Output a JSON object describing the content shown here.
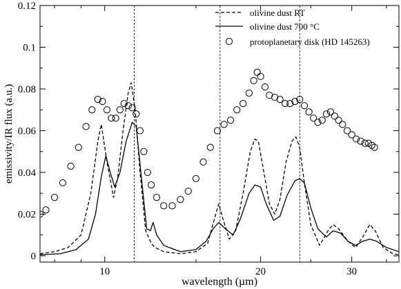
{
  "chart_data": {
    "type": "line",
    "title": "",
    "xlabel": "wavelength (µm)",
    "ylabel": "emissivity/IR flux (a.u.)",
    "x_scale": "log",
    "xlim": [
      7.5,
      37
    ],
    "ylim": [
      -0.003,
      0.12
    ],
    "x_ticks": [
      10,
      20,
      30
    ],
    "x_tick_labels": [
      "10",
      "20",
      "30"
    ],
    "y_ticks": [
      0,
      0.02,
      0.04,
      0.06,
      0.08,
      0.1,
      0.12
    ],
    "y_tick_labels": [
      "0",
      "0.02",
      "0.04",
      "0.06",
      "0.08",
      "0.1",
      "0.12"
    ],
    "vertical_lines_x": [
      11.4,
      16.7,
      23.8
    ],
    "legend_position": "top-right",
    "legend": [
      {
        "label": "olivine dust RT",
        "style": "dashed"
      },
      {
        "label": "olivine dust 700 °C",
        "style": "solid"
      },
      {
        "label": "protoplanetary disk (HD 145263)",
        "style": "open-circles"
      }
    ],
    "series": [
      {
        "name": "olivine dust RT",
        "style": "dashed",
        "color": "#000000",
        "points": [
          [
            7.5,
            0.001
          ],
          [
            8,
            0.002
          ],
          [
            8.5,
            0.004
          ],
          [
            9,
            0.01
          ],
          [
            9.4,
            0.03
          ],
          [
            9.7,
            0.055
          ],
          [
            9.85,
            0.063
          ],
          [
            10.1,
            0.045
          ],
          [
            10.4,
            0.028
          ],
          [
            10.6,
            0.038
          ],
          [
            10.85,
            0.06
          ],
          [
            11.1,
            0.078
          ],
          [
            11.25,
            0.083
          ],
          [
            11.45,
            0.07
          ],
          [
            11.7,
            0.04
          ],
          [
            12.0,
            0.012
          ],
          [
            12.3,
            0.006
          ],
          [
            12.5,
            0.004
          ],
          [
            13,
            0.002
          ],
          [
            14,
            0.001
          ],
          [
            15,
            0.002
          ],
          [
            15.8,
            0.006
          ],
          [
            16.3,
            0.018
          ],
          [
            16.6,
            0.025
          ],
          [
            16.9,
            0.018
          ],
          [
            17.4,
            0.008
          ],
          [
            17.9,
            0.012
          ],
          [
            18.5,
            0.03
          ],
          [
            19.1,
            0.05
          ],
          [
            19.5,
            0.056
          ],
          [
            19.8,
            0.055
          ],
          [
            20.3,
            0.04
          ],
          [
            20.8,
            0.025
          ],
          [
            21.3,
            0.02
          ],
          [
            21.8,
            0.027
          ],
          [
            22.4,
            0.045
          ],
          [
            23.0,
            0.055
          ],
          [
            23.4,
            0.057
          ],
          [
            23.8,
            0.052
          ],
          [
            24.3,
            0.035
          ],
          [
            25,
            0.015
          ],
          [
            26,
            0.005
          ],
          [
            27,
            0.012
          ],
          [
            27.6,
            0.015
          ],
          [
            28.3,
            0.013
          ],
          [
            29.5,
            0.007
          ],
          [
            30.5,
            0.004
          ],
          [
            31.5,
            0.009
          ],
          [
            32.5,
            0.015
          ],
          [
            33.3,
            0.012
          ],
          [
            34.5,
            0.004
          ],
          [
            36,
            0.001
          ],
          [
            37,
            0.0005
          ]
        ]
      },
      {
        "name": "olivine dust 700 °C",
        "style": "solid",
        "color": "#000000",
        "points": [
          [
            7.5,
            0.0005
          ],
          [
            8.2,
            0.001
          ],
          [
            8.8,
            0.003
          ],
          [
            9.3,
            0.008
          ],
          [
            9.6,
            0.02
          ],
          [
            9.85,
            0.038
          ],
          [
            10.05,
            0.048
          ],
          [
            10.25,
            0.04
          ],
          [
            10.45,
            0.033
          ],
          [
            10.7,
            0.04
          ],
          [
            11.0,
            0.055
          ],
          [
            11.3,
            0.064
          ],
          [
            11.5,
            0.062
          ],
          [
            11.8,
            0.035
          ],
          [
            12.05,
            0.013
          ],
          [
            12.25,
            0.012
          ],
          [
            12.4,
            0.016
          ],
          [
            12.6,
            0.01
          ],
          [
            13,
            0.005
          ],
          [
            14,
            0.002
          ],
          [
            15,
            0.003
          ],
          [
            15.7,
            0.007
          ],
          [
            16.2,
            0.013
          ],
          [
            16.6,
            0.016
          ],
          [
            17.1,
            0.013
          ],
          [
            17.7,
            0.01
          ],
          [
            18.3,
            0.018
          ],
          [
            19.0,
            0.03
          ],
          [
            19.5,
            0.034
          ],
          [
            20.0,
            0.033
          ],
          [
            20.5,
            0.025
          ],
          [
            21.2,
            0.017
          ],
          [
            21.8,
            0.019
          ],
          [
            22.5,
            0.029
          ],
          [
            23.3,
            0.036
          ],
          [
            23.8,
            0.037
          ],
          [
            24.3,
            0.035
          ],
          [
            25,
            0.023
          ],
          [
            25.8,
            0.013
          ],
          [
            26.8,
            0.009
          ],
          [
            27.6,
            0.012
          ],
          [
            28.5,
            0.011
          ],
          [
            29.5,
            0.007
          ],
          [
            30.5,
            0.005
          ],
          [
            31.5,
            0.007
          ],
          [
            32.5,
            0.008
          ],
          [
            33.5,
            0.007
          ],
          [
            35,
            0.004
          ],
          [
            37,
            0.002
          ]
        ]
      },
      {
        "name": "protoplanetary disk (HD 145263)",
        "style": "open-circles",
        "color": "#000000",
        "points": [
          [
            7.5,
            0.02
          ],
          [
            7.7,
            0.022
          ],
          [
            8.0,
            0.028
          ],
          [
            8.3,
            0.035
          ],
          [
            8.6,
            0.043
          ],
          [
            8.9,
            0.052
          ],
          [
            9.2,
            0.062
          ],
          [
            9.45,
            0.07
          ],
          [
            9.7,
            0.075
          ],
          [
            9.9,
            0.074
          ],
          [
            10.1,
            0.07
          ],
          [
            10.3,
            0.066
          ],
          [
            10.5,
            0.066
          ],
          [
            10.7,
            0.07
          ],
          [
            10.9,
            0.073
          ],
          [
            11.1,
            0.072
          ],
          [
            11.3,
            0.071
          ],
          [
            11.5,
            0.068
          ],
          [
            11.7,
            0.06
          ],
          [
            11.9,
            0.05
          ],
          [
            12.1,
            0.04
          ],
          [
            12.3,
            0.034
          ],
          [
            12.6,
            0.028
          ],
          [
            13.0,
            0.024
          ],
          [
            13.5,
            0.024
          ],
          [
            14.0,
            0.027
          ],
          [
            14.5,
            0.031
          ],
          [
            15.0,
            0.037
          ],
          [
            15.5,
            0.045
          ],
          [
            16.0,
            0.052
          ],
          [
            16.5,
            0.06
          ],
          [
            17.0,
            0.063
          ],
          [
            17.5,
            0.065
          ],
          [
            18.0,
            0.07
          ],
          [
            18.5,
            0.073
          ],
          [
            19.0,
            0.078
          ],
          [
            19.4,
            0.084
          ],
          [
            19.7,
            0.088
          ],
          [
            20.0,
            0.086
          ],
          [
            20.4,
            0.081
          ],
          [
            20.8,
            0.077
          ],
          [
            21.3,
            0.076
          ],
          [
            21.8,
            0.075
          ],
          [
            22.3,
            0.073
          ],
          [
            22.8,
            0.073
          ],
          [
            23.3,
            0.074
          ],
          [
            23.8,
            0.075
          ],
          [
            24.3,
            0.072
          ],
          [
            24.8,
            0.069
          ],
          [
            25.3,
            0.066
          ],
          [
            25.8,
            0.064
          ],
          [
            26.3,
            0.065
          ],
          [
            26.8,
            0.068
          ],
          [
            27.3,
            0.069
          ],
          [
            27.8,
            0.067
          ],
          [
            28.3,
            0.065
          ],
          [
            28.8,
            0.063
          ],
          [
            29.4,
            0.06
          ],
          [
            30.0,
            0.058
          ],
          [
            30.6,
            0.056
          ],
          [
            31.2,
            0.055
          ],
          [
            31.8,
            0.054
          ],
          [
            32.3,
            0.054
          ],
          [
            32.8,
            0.053
          ],
          [
            33.2,
            0.052
          ]
        ]
      }
    ]
  }
}
